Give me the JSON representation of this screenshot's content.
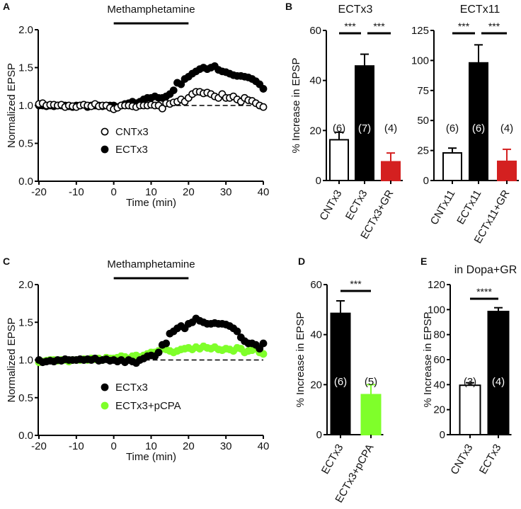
{
  "panel_labels": [
    "A",
    "B",
    "C",
    "D",
    "E"
  ],
  "chart_data": [
    {
      "id": "A",
      "type": "scatter",
      "xlabel": "Time (min)",
      "ylabel": "Normalized EPSP",
      "xlim": [
        -20,
        40
      ],
      "ylim": [
        0,
        2.0
      ],
      "xticks": [
        "-20",
        "-10",
        "0",
        "10",
        "20",
        "30",
        "40"
      ],
      "yticks": [
        "0.0",
        "0.5",
        "1.0",
        "1.5",
        "2.0"
      ],
      "baseline": 1.0,
      "annotation": {
        "label": "Methamphetamine",
        "start": 0,
        "end": 20
      },
      "x_start": -20,
      "x_step": 1,
      "series": [
        {
          "name": "ECTx3",
          "color": "#000000",
          "filled": true,
          "sem": 0.03,
          "values": [
            1.0,
            1.0,
            0.99,
            1.0,
            0.99,
            1.0,
            1.0,
            1.0,
            0.99,
            0.98,
            1.0,
            1.0,
            1.01,
            0.98,
            1.0,
            1.0,
            1.0,
            0.99,
            1.0,
            1.0,
            1.0,
            0.98,
            1.0,
            1.02,
            1.03,
            1.05,
            1.03,
            1.05,
            1.08,
            1.1,
            1.1,
            1.12,
            1.1,
            1.1,
            1.12,
            1.15,
            1.2,
            1.3,
            1.28,
            1.35,
            1.38,
            1.42,
            1.45,
            1.48,
            1.5,
            1.48,
            1.5,
            1.52,
            1.47,
            1.45,
            1.44,
            1.42,
            1.4,
            1.39,
            1.39,
            1.38,
            1.37,
            1.35,
            1.32,
            1.28,
            1.22
          ]
        },
        {
          "name": "CNTx3",
          "color": "#000000",
          "filled": false,
          "sem": 0.03,
          "values": [
            1.02,
            1.03,
            1.0,
            1.01,
            1.01,
            1.0,
            1.01,
            0.98,
            1.0,
            0.99,
            0.98,
            1.0,
            1.01,
            1.0,
            0.99,
            1.02,
            0.99,
            1.0,
            1.0,
            0.97,
            0.95,
            0.97,
            1.0,
            1.0,
            1.0,
            0.99,
            0.98,
            1.0,
            1.0,
            1.0,
            1.01,
            1.0,
            1.0,
            0.96,
            1.03,
            1.02,
            1.04,
            1.05,
            1.08,
            1.05,
            1.1,
            1.15,
            1.18,
            1.18,
            1.16,
            1.17,
            1.15,
            1.12,
            1.1,
            1.15,
            1.1,
            1.1,
            1.12,
            1.08,
            1.05,
            1.1,
            1.07,
            1.06,
            1.03,
            1.0,
            0.98
          ]
        }
      ],
      "legend": [
        {
          "name": "CNTx3",
          "filled": false,
          "color": "#000000"
        },
        {
          "name": "ECTx3",
          "filled": true,
          "color": "#000000"
        }
      ]
    },
    {
      "id": "B1",
      "type": "bar",
      "title": "ECTx3",
      "ylabel": "% Increase in EPSP",
      "ylim": [
        0,
        60
      ],
      "yticks": [
        "0",
        "20",
        "40",
        "60"
      ],
      "categories": [
        "CNTx3",
        "ECTx3",
        "ECTx3+GR"
      ],
      "values": [
        16.3,
        45.8,
        7.5
      ],
      "errors": [
        3.0,
        4.7,
        3.5
      ],
      "n": [
        "(6)",
        "(7)",
        "(4)"
      ],
      "colors": [
        "#ffffff",
        "#000000",
        "#d42020"
      ],
      "significance": [
        {
          "pair": [
            0,
            1
          ],
          "label": "***"
        },
        {
          "pair": [
            1,
            2
          ],
          "label": "***"
        }
      ]
    },
    {
      "id": "B2",
      "type": "bar",
      "title": "ECTx11",
      "ylabel": "",
      "ylim": [
        0,
        125
      ],
      "yticks": [
        "0",
        "25",
        "50",
        "75",
        "100",
        "125"
      ],
      "categories": [
        "CNTx11",
        "ECTx11",
        "ECTx11+GR"
      ],
      "values": [
        23,
        98,
        16
      ],
      "errors": [
        4,
        15,
        10
      ],
      "n": [
        "(6)",
        "(6)",
        "(4)"
      ],
      "colors": [
        "#ffffff",
        "#000000",
        "#d42020"
      ],
      "significance": [
        {
          "pair": [
            0,
            1
          ],
          "label": "***"
        },
        {
          "pair": [
            1,
            2
          ],
          "label": "***"
        }
      ]
    },
    {
      "id": "C",
      "type": "scatter",
      "xlabel": "Time (min)",
      "ylabel": "Normalized EPSP",
      "xlim": [
        -20,
        40
      ],
      "ylim": [
        0,
        2.0
      ],
      "xticks": [
        "-20",
        "-10",
        "0",
        "10",
        "20",
        "30",
        "40"
      ],
      "yticks": [
        "0.0",
        "0.5",
        "1.0",
        "1.5",
        "2.0"
      ],
      "baseline": 1.0,
      "annotation": {
        "label": "Methamphetamine",
        "start": 0,
        "end": 20
      },
      "x_start": -20,
      "x_step": 1,
      "series": [
        {
          "name": "ECTx3+pCPA",
          "color": "#7fff2a",
          "filled": true,
          "sem": 0.04,
          "values": [
            0.97,
            0.98,
            0.99,
            1.0,
            1.0,
            0.99,
            1.0,
            1.0,
            0.98,
            1.0,
            1.0,
            1.0,
            1.01,
            1.0,
            1.02,
            1.01,
            1.02,
            1.0,
            1.03,
            1.02,
            1.02,
            1.03,
            1.05,
            1.04,
            1.02,
            1.05,
            1.06,
            1.04,
            1.06,
            1.08,
            1.1,
            1.1,
            1.12,
            1.15,
            1.14,
            1.12,
            1.1,
            1.12,
            1.14,
            1.15,
            1.16,
            1.14,
            1.17,
            1.15,
            1.18,
            1.16,
            1.15,
            1.17,
            1.14,
            1.13,
            1.15,
            1.14,
            1.12,
            1.16,
            1.15,
            1.1,
            1.12,
            1.13,
            1.15,
            1.1,
            1.08
          ]
        },
        {
          "name": "ECTx3",
          "color": "#000000",
          "filled": true,
          "sem": 0.03,
          "values": [
            1.0,
            0.97,
            0.98,
            0.99,
            0.98,
            1.0,
            0.99,
            1.01,
            1.0,
            1.0,
            1.0,
            1.01,
            1.0,
            1.01,
            1.0,
            1.02,
            0.99,
            1.0,
            1.01,
            0.99,
            1.0,
            0.98,
            1.0,
            0.97,
            1.0,
            0.98,
            0.96,
            1.0,
            1.02,
            1.05,
            1.06,
            1.05,
            1.1,
            1.2,
            1.22,
            1.35,
            1.38,
            1.42,
            1.45,
            1.42,
            1.48,
            1.5,
            1.55,
            1.52,
            1.5,
            1.48,
            1.48,
            1.49,
            1.48,
            1.48,
            1.47,
            1.45,
            1.42,
            1.38,
            1.3,
            1.25,
            1.22,
            1.22,
            1.2,
            1.15,
            1.22
          ]
        }
      ],
      "legend": [
        {
          "name": "ECTx3",
          "filled": true,
          "color": "#000000"
        },
        {
          "name": "ECTx3+pCPA",
          "filled": true,
          "color": "#7fff2a"
        }
      ]
    },
    {
      "id": "D",
      "type": "bar",
      "title": "",
      "ylabel": "% Increase in EPSP",
      "ylim": [
        0,
        60
      ],
      "yticks": [
        "0",
        "20",
        "40",
        "60"
      ],
      "categories": [
        "ECTx3",
        "ECTx3+pCPA"
      ],
      "values": [
        48.5,
        16
      ],
      "errors": [
        5,
        4
      ],
      "n": [
        "(6)",
        "(5)"
      ],
      "colors": [
        "#000000",
        "#7fff2a"
      ],
      "significance": [
        {
          "pair": [
            0,
            1
          ],
          "label": "***"
        }
      ]
    },
    {
      "id": "E",
      "type": "bar",
      "title": "in Dopa+GR",
      "ylabel": "% Increase in EPSP",
      "ylim": [
        0,
        120
      ],
      "yticks": [
        "0",
        "20",
        "40",
        "60",
        "80",
        "100",
        "120"
      ],
      "categories": [
        "CNTx3",
        "ECTx3"
      ],
      "values": [
        39.5,
        98.5
      ],
      "errors": [
        2,
        3
      ],
      "n": [
        "(3)",
        "(4)"
      ],
      "colors": [
        "#ffffff",
        "#000000"
      ],
      "significance": [
        {
          "pair": [
            0,
            1
          ],
          "label": "****"
        }
      ]
    }
  ]
}
